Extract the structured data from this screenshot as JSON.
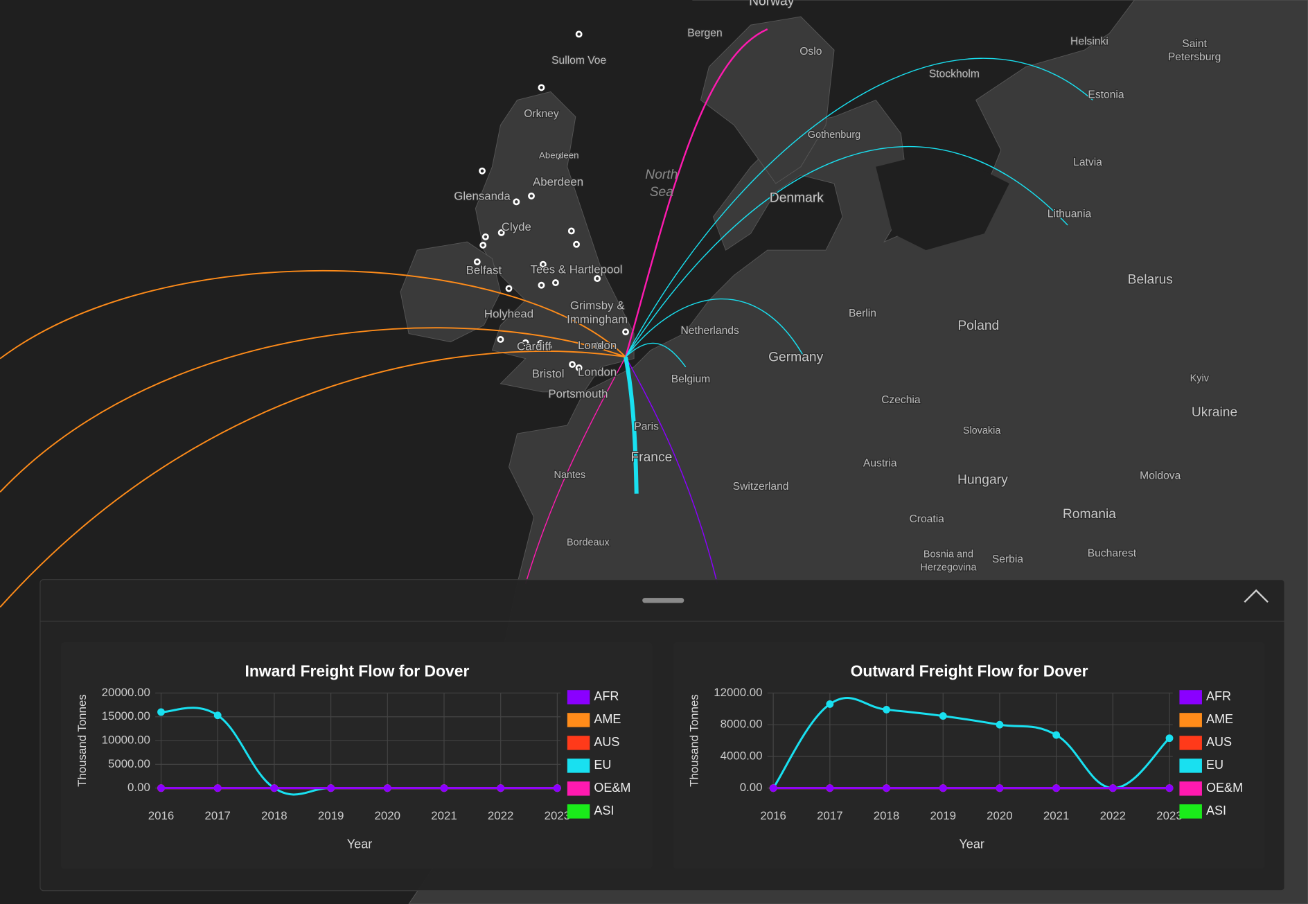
{
  "map_labels": [
    "Norway",
    "Bergen",
    "Oslo",
    "Helsinki",
    "Saint",
    "Petersburg",
    "Sullom Voe",
    "Stockholm",
    "Estonia",
    "Orkney",
    "Aberdeen",
    "Gothenburg",
    "North",
    "Sea",
    "Aberdeen",
    "Latvia",
    "Glensanda",
    "Denmark",
    "Lithuania",
    "Clyde",
    "Belfast",
    "Tees & Hartlepool",
    "Belarus",
    "Grimsby &",
    "Immingham",
    "Berlin",
    "Poland",
    "Holyhead",
    "Netherlands",
    "London",
    "Germany",
    "Cardiff",
    "Bristol",
    "London",
    "Belgium",
    "Portsmouth",
    "Czechia",
    "Kyiv",
    "Ukraine",
    "Slovakia",
    "Paris",
    "France",
    "Austria",
    "Nantes",
    "Hungary",
    "Moldova",
    "Switzerland",
    "Romania",
    "Croatia",
    "Bordeaux",
    "Bucharest",
    "Bosnia and",
    "Herzegovina",
    "Serbia"
  ],
  "chart_data": [
    {
      "type": "line",
      "title": "Inward Freight Flow for Dover",
      "x_label": "Year",
      "y_label": "Thousand Tonnes",
      "categories": [
        "2016",
        "2017",
        "2018",
        "2019",
        "2020",
        "2021",
        "2022",
        "2023"
      ],
      "ylim": [
        0,
        20000
      ],
      "yticks": [
        {
          "value": 0,
          "label": "0.00"
        },
        {
          "value": 5000,
          "label": "5000.00"
        },
        {
          "value": 10000,
          "label": "10000.00"
        },
        {
          "value": 15000,
          "label": "15000.00"
        },
        {
          "value": 20000,
          "label": "20000.00"
        }
      ],
      "grid": true,
      "legend": "right",
      "series": [
        {
          "name": "AFR",
          "color": "#8a00ff",
          "values": [
            0,
            0,
            0,
            0,
            0,
            0,
            0,
            0
          ]
        },
        {
          "name": "AME",
          "color": "#ff8c1a",
          "values": [
            0,
            0,
            0,
            0,
            0,
            0,
            0,
            0
          ]
        },
        {
          "name": "AUS",
          "color": "#ff3a1a",
          "values": [
            0,
            0,
            0,
            0,
            0,
            0,
            0,
            0
          ]
        },
        {
          "name": "EU",
          "color": "#19e0f0",
          "values": [
            16000,
            15300,
            0,
            0,
            0,
            0,
            0,
            0
          ]
        },
        {
          "name": "OE&M",
          "color": "#ff1ab0",
          "values": [
            0,
            0,
            0,
            0,
            0,
            0,
            0,
            0
          ]
        },
        {
          "name": "ASI",
          "color": "#1aeb1a",
          "values": [
            0,
            0,
            0,
            0,
            0,
            0,
            0,
            0
          ]
        }
      ]
    },
    {
      "type": "line",
      "title": "Outward Freight Flow for Dover",
      "x_label": "Year",
      "y_label": "Thousand Tonnes",
      "categories": [
        "2016",
        "2017",
        "2018",
        "2019",
        "2020",
        "2021",
        "2022",
        "2023"
      ],
      "ylim": [
        0,
        12000
      ],
      "yticks": [
        {
          "value": 0,
          "label": "0.00"
        },
        {
          "value": 4000,
          "label": "4000.00"
        },
        {
          "value": 8000,
          "label": "8000.00"
        },
        {
          "value": 12000,
          "label": "12000.00"
        }
      ],
      "grid": true,
      "legend": "right",
      "series": [
        {
          "name": "AFR",
          "color": "#8a00ff",
          "values": [
            0,
            0,
            0,
            0,
            0,
            0,
            0,
            0
          ]
        },
        {
          "name": "AME",
          "color": "#ff8c1a",
          "values": [
            0,
            0,
            0,
            0,
            0,
            0,
            0,
            0
          ]
        },
        {
          "name": "AUS",
          "color": "#ff3a1a",
          "values": [
            0,
            0,
            0,
            0,
            0,
            0,
            0,
            0
          ]
        },
        {
          "name": "EU",
          "color": "#19e0f0",
          "values": [
            0,
            10600,
            9900,
            9100,
            8000,
            6700,
            0,
            6300
          ]
        },
        {
          "name": "OE&M",
          "color": "#ff1ab0",
          "values": [
            0,
            0,
            0,
            0,
            0,
            0,
            0,
            0
          ]
        },
        {
          "name": "ASI",
          "color": "#1aeb1a",
          "values": [
            0,
            0,
            0,
            0,
            0,
            0,
            0,
            0
          ]
        }
      ]
    }
  ]
}
